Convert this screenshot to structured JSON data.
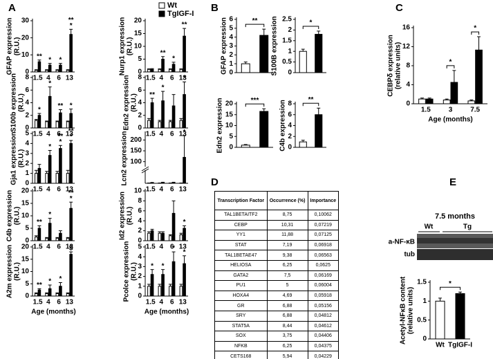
{
  "panels": [
    "A",
    "B",
    "C",
    "D",
    "E"
  ],
  "chart_data": [
    {
      "type": "bar",
      "ylabel": "GFAP expression",
      "yunit": "(R.U.)",
      "categories": [
        "1.5",
        "4",
        "6",
        "13"
      ],
      "series": [
        {
          "name": "Wt",
          "color": "#ffffff",
          "values": [
            1,
            1,
            1,
            1
          ],
          "errors": [
            0.3,
            0.3,
            0.3,
            0.3
          ]
        },
        {
          "name": "TgIGF-I",
          "color": "#000000",
          "values": [
            6,
            4,
            4,
            22
          ],
          "errors": [
            1,
            1,
            1,
            3
          ]
        }
      ],
      "ylim": [
        0,
        30
      ],
      "yticks": [
        0,
        10,
        20,
        30
      ],
      "annotations": [
        {
          "index": 0,
          "text": [
            "**"
          ]
        },
        {
          "index": 1,
          "text": [
            "*"
          ]
        },
        {
          "index": 2,
          "text": [
            "*"
          ]
        },
        {
          "index": 3,
          "text": [
            "**",
            "*"
          ]
        }
      ]
    },
    {
      "type": "bar",
      "ylabel": "S100b expression",
      "yunit": "(R.U.)",
      "categories": [
        "1.5",
        "4",
        "6",
        "13"
      ],
      "series": [
        {
          "color": "#ffffff",
          "values": [
            1.2,
            1,
            1,
            1
          ],
          "errors": [
            0.15,
            0.1,
            0.1,
            0.1
          ]
        },
        {
          "color": "#000000",
          "values": [
            2,
            5,
            2.4,
            2.3
          ],
          "errors": [
            0.3,
            1.5,
            0.5,
            0.7
          ]
        }
      ],
      "ylim": [
        0,
        8
      ],
      "yticks": [
        0,
        2,
        4,
        6,
        8
      ],
      "annotations": [
        {
          "index": 0,
          "text": [
            "*"
          ]
        },
        {
          "index": 1,
          "text": [
            "*"
          ]
        },
        {
          "index": 2,
          "text": [
            "**"
          ]
        },
        {
          "index": 3,
          "text": [
            "*"
          ]
        }
      ]
    },
    {
      "type": "bar",
      "ylabel": "Gja1 expression",
      "yunit": "(R.U.)",
      "categories": [
        "1.5",
        "4",
        "6",
        "13"
      ],
      "series": [
        {
          "color": "#ffffff",
          "values": [
            1,
            1,
            1,
            1
          ],
          "errors": [
            0.3,
            0.2,
            0.2,
            0.3
          ]
        },
        {
          "color": "#000000",
          "values": [
            1.5,
            2.8,
            3.5,
            4
          ],
          "errors": [
            0.4,
            0.5,
            0.3,
            0.3
          ]
        }
      ],
      "ylim": [
        0,
        5
      ],
      "yticks": [
        0,
        1,
        2,
        3,
        4,
        5
      ],
      "annotations": [
        {
          "index": 1,
          "text": [
            "*"
          ]
        },
        {
          "index": 2,
          "text": [
            "**",
            "*"
          ]
        },
        {
          "index": 3,
          "text": [
            "**",
            "*"
          ]
        }
      ]
    },
    {
      "type": "bar",
      "ylabel": "C4b expression",
      "yunit": "(R.U.)",
      "categories": [
        "1.5",
        "4",
        "6",
        "13"
      ],
      "series": [
        {
          "color": "#ffffff",
          "values": [
            1.5,
            1,
            1,
            1
          ],
          "errors": [
            0.5,
            0.3,
            0.3,
            0.3
          ]
        },
        {
          "color": "#000000",
          "values": [
            5,
            7,
            3,
            13
          ],
          "errors": [
            1,
            2,
            1,
            2.5
          ]
        }
      ],
      "ylim": [
        0,
        20
      ],
      "yticks": [
        0,
        5,
        10,
        15,
        20
      ],
      "annotations": [
        {
          "index": 0,
          "text": [
            "**"
          ]
        },
        {
          "index": 1,
          "text": [
            "*"
          ]
        },
        {
          "index": 3,
          "text": [
            "**",
            "*"
          ]
        }
      ]
    },
    {
      "type": "bar",
      "ylabel": "A2m expression",
      "yunit": "(R.U.)",
      "categories": [
        "1.5",
        "4",
        "6",
        "13"
      ],
      "xlabel": "Age (months)",
      "series": [
        {
          "color": "#ffffff",
          "values": [
            1,
            1,
            1,
            1
          ],
          "errors": [
            0.3,
            0.3,
            0.3,
            0.3
          ]
        },
        {
          "color": "#000000",
          "values": [
            2.5,
            3,
            4,
            17
          ],
          "errors": [
            0.5,
            1.5,
            1.5,
            1
          ]
        }
      ],
      "ylim": [
        0,
        20
      ],
      "yticks": [
        0,
        5,
        10,
        15,
        20
      ],
      "annotations": [
        {
          "index": 0,
          "text": [
            "**"
          ]
        },
        {
          "index": 1,
          "text": [
            "*"
          ]
        },
        {
          "index": 2,
          "text": [
            "*"
          ]
        },
        {
          "index": 3,
          "text": [
            "$"
          ]
        }
      ]
    },
    {
      "type": "bar",
      "ylabel": "Nurp1 expression",
      "yunit": "(R.U.)",
      "categories": [
        "1.5",
        "4",
        "6",
        "13"
      ],
      "series": [
        {
          "color": "#ffffff",
          "values": [
            1,
            1,
            1,
            1
          ],
          "errors": [
            0.2,
            0.2,
            0.2,
            0.2
          ]
        },
        {
          "color": "#000000",
          "values": [
            1,
            5,
            3,
            14
          ],
          "errors": [
            0.3,
            1,
            0.8,
            3
          ]
        }
      ],
      "ylim": [
        0,
        20
      ],
      "yticks": [
        0,
        5,
        10,
        15,
        20
      ],
      "annotations": [
        {
          "index": 1,
          "text": [
            "**"
          ]
        },
        {
          "index": 2,
          "text": [
            "*"
          ]
        },
        {
          "index": 3,
          "text": [
            "**"
          ]
        }
      ]
    },
    {
      "type": "bar",
      "ylabel": "Edn2 expression",
      "yunit": "(R.U.)",
      "categories": [
        "1.5",
        "4",
        "6",
        "13"
      ],
      "series": [
        {
          "color": "#ffffff",
          "values": [
            1.2,
            1,
            1,
            1.2
          ],
          "errors": [
            0.3,
            0.2,
            0.2,
            0.3
          ]
        },
        {
          "color": "#000000",
          "values": [
            4,
            4.3,
            3.5,
            5.3
          ],
          "errors": [
            0.7,
            1.5,
            1.8,
            2
          ]
        }
      ],
      "ylim": [
        0,
        8
      ],
      "yticks": [
        0,
        2,
        4,
        6,
        8
      ],
      "annotations": [
        {
          "index": 0,
          "text": [
            "**"
          ]
        },
        {
          "index": 1,
          "text": [
            "*"
          ]
        },
        {
          "index": 3,
          "text": [
            "*"
          ]
        }
      ]
    },
    {
      "type": "bar",
      "ylabel": "Lcn2 expression",
      "categories": [
        "1.5",
        "4",
        "6",
        "13"
      ],
      "axis_break": true,
      "series": [
        {
          "color": "#ffffff",
          "values": [
            1,
            1,
            1,
            1
          ],
          "errors": [
            0.5,
            0.5,
            0.5,
            0.5
          ]
        },
        {
          "color": "#000000",
          "values": [
            3,
            4,
            4,
            120
          ],
          "errors": [
            1,
            1,
            1,
            100
          ]
        }
      ],
      "ylim": [
        0,
        230
      ],
      "yticks": [
        100,
        150,
        200
      ],
      "annotations": [
        {
          "index": 3,
          "text": [
            "*"
          ]
        }
      ]
    },
    {
      "type": "bar",
      "ylabel": "Id2 expression",
      "yunit": "(R.U.)",
      "categories": [
        "1.5",
        "4",
        "6",
        "13"
      ],
      "series": [
        {
          "color": "#ffffff",
          "values": [
            1.5,
            1.5,
            1,
            1.2
          ],
          "errors": [
            0.3,
            0.3,
            0.2,
            0.3
          ]
        },
        {
          "color": "#000000",
          "values": [
            2,
            1.5,
            5.5,
            2.5
          ],
          "errors": [
            0.3,
            0.3,
            2.5,
            0.5
          ]
        }
      ],
      "ylim": [
        0,
        10
      ],
      "yticks": [
        0,
        2,
        4,
        6,
        8,
        10
      ],
      "annotations": [
        {
          "index": 3,
          "text": [
            "*"
          ]
        }
      ]
    },
    {
      "type": "bar",
      "ylabel": "Pcolce expression",
      "yunit": "(R.U.)",
      "categories": [
        "1.5",
        "4",
        "6",
        "13"
      ],
      "xlabel": "Age (months)",
      "series": [
        {
          "color": "#ffffff",
          "values": [
            1,
            1,
            1,
            1
          ],
          "errors": [
            0.2,
            0.2,
            0.2,
            0.2
          ]
        },
        {
          "color": "#000000",
          "values": [
            2.2,
            2.2,
            3.5,
            3.3
          ],
          "errors": [
            0.5,
            0.5,
            1,
            0.8
          ]
        }
      ],
      "ylim": [
        0,
        5
      ],
      "yticks": [
        0,
        1,
        2,
        3,
        4,
        5
      ],
      "annotations": [
        {
          "index": 0,
          "text": [
            "*"
          ]
        },
        {
          "index": 1,
          "text": [
            "*"
          ]
        },
        {
          "index": 2,
          "text": [
            "*"
          ]
        },
        {
          "index": 3,
          "text": [
            "*"
          ]
        }
      ]
    },
    {
      "type": "bar",
      "ylabel": "GFAP expression",
      "values": [
        1,
        4.2
      ],
      "errors": [
        0.2,
        0.7
      ],
      "colors": [
        "#ffffff",
        "#000000"
      ],
      "ylim": [
        0,
        6
      ],
      "yticks": [
        0,
        1,
        2,
        3,
        4,
        5,
        6
      ],
      "brackets": [
        {
          "text": "**"
        }
      ]
    },
    {
      "type": "bar",
      "ylabel": "S100B expression",
      "values": [
        1,
        1.8
      ],
      "errors": [
        0.1,
        0.15
      ],
      "colors": [
        "#ffffff",
        "#000000"
      ],
      "ylim": [
        0,
        2.5
      ],
      "yticks": [
        0,
        0.5,
        1,
        1.5,
        2,
        2.5
      ],
      "brackets": [
        {
          "text": "*"
        }
      ]
    },
    {
      "type": "bar",
      "ylabel": "Edn2 expression",
      "values": [
        1,
        16.5
      ],
      "errors": [
        0.3,
        1.2
      ],
      "colors": [
        "#ffffff",
        "#000000"
      ],
      "ylim": [
        0,
        20
      ],
      "yticks": [
        0,
        5,
        10,
        15,
        20
      ],
      "brackets": [
        {
          "text": "***"
        }
      ]
    },
    {
      "type": "bar",
      "ylabel": "C4b expression",
      "values": [
        1,
        6
      ],
      "errors": [
        0.3,
        1.2
      ],
      "colors": [
        "#ffffff",
        "#000000"
      ],
      "ylim": [
        0,
        8
      ],
      "yticks": [
        0,
        2,
        4,
        6,
        8
      ],
      "brackets": [
        {
          "text": "**"
        }
      ]
    },
    {
      "type": "bar",
      "ylabel": "CEBPδ expression",
      "yunit": "(relative units)",
      "categories": [
        "1.5",
        "3",
        "7.5"
      ],
      "xlabel": "Age (months)",
      "series": [
        {
          "color": "#ffffff",
          "values": [
            1,
            0.8,
            0.6
          ],
          "errors": [
            0.2,
            0.2,
            0.2
          ]
        },
        {
          "color": "#000000",
          "values": [
            1,
            4.5,
            11.3
          ],
          "errors": [
            0.2,
            2.5,
            2.8
          ]
        }
      ],
      "ylim": [
        0,
        16
      ],
      "yticks": [
        0,
        4,
        8,
        12,
        16
      ],
      "brackets": [
        {
          "index": 1,
          "text": "*"
        },
        {
          "index": 2,
          "text": "*"
        }
      ]
    },
    {
      "type": "bar",
      "ylabel": "Acetyl-NFκB content",
      "yunit": "(relative units)",
      "categories": [
        "Wt",
        "TgIGF-I"
      ],
      "values": [
        1,
        1.2
      ],
      "errors": [
        0.08,
        0.04
      ],
      "colors": [
        "#ffffff",
        "#000000"
      ],
      "ylim": [
        0,
        1.5
      ],
      "yticks": [
        0,
        0.5,
        1,
        1.5
      ],
      "brackets": [
        {
          "text": "*"
        }
      ]
    }
  ],
  "table": {
    "header": [
      "Transcription Factor",
      "Occurrence (%)",
      "Importance"
    ],
    "rows": [
      [
        "TAL1BETAITF2",
        "8,75",
        "0,10062"
      ],
      [
        "CEBP",
        "10,31",
        "0,07219"
      ],
      [
        "YY1",
        "11,88",
        "0,07125"
      ],
      [
        "STAT",
        "7,19",
        "0,06918"
      ],
      [
        "TAL1BETAE47",
        "9,38",
        "0,06563"
      ],
      [
        "HELIOSA",
        "6,25",
        "0,0625"
      ],
      [
        "GATA2",
        "7,5",
        "0,06169"
      ],
      [
        "PU1",
        "5",
        "0,06004"
      ],
      [
        "HOXA4",
        "4,69",
        "0,05918"
      ],
      [
        "GR",
        "6,88",
        "0,05156"
      ],
      [
        "SRY",
        "6,88",
        "0,04812"
      ],
      [
        "STAT5A",
        "8,44",
        "0,04612"
      ],
      [
        "SOX",
        "3,75",
        "0,04406"
      ],
      [
        "NFKB",
        "6,25",
        "0,04375"
      ],
      [
        "CETS168",
        "5,94",
        "0,04229"
      ]
    ]
  },
  "blot": {
    "title": "7.5 months",
    "groups": [
      "Wt",
      "Tg"
    ],
    "bands": [
      "a-NF-κB",
      "tub"
    ]
  }
}
